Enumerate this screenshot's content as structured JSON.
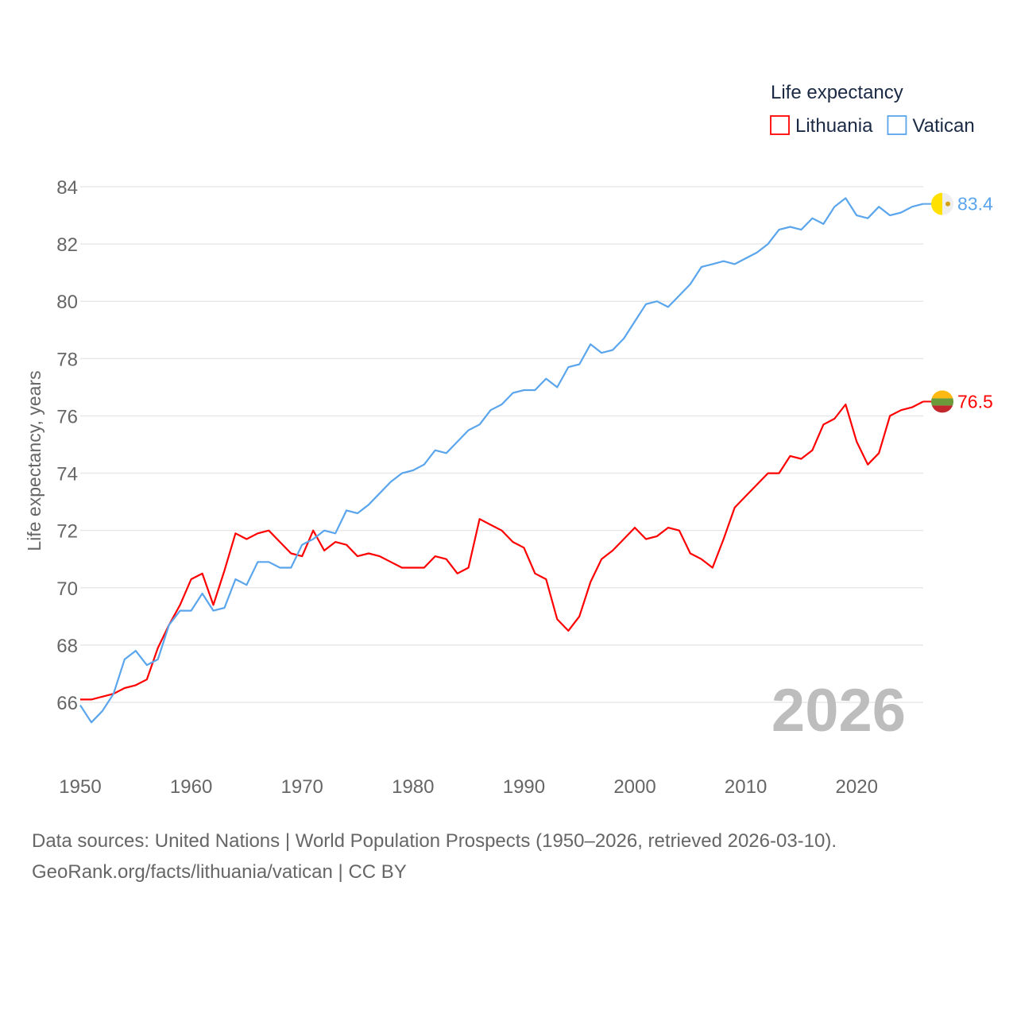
{
  "chart_data": {
    "type": "line",
    "title": "",
    "xlabel": "",
    "ylabel": "Life expectancy, years",
    "legend_title": "Life expectancy",
    "legend_position": "top-right",
    "xlim": [
      1950,
      2026
    ],
    "ylim": [
      64.5,
      84.5
    ],
    "xticks": [
      1950,
      1960,
      1970,
      1980,
      1990,
      2000,
      2010,
      2020
    ],
    "yticks": [
      66,
      68,
      70,
      72,
      74,
      76,
      78,
      80,
      82,
      84
    ],
    "grid": true,
    "watermark_year": "2026",
    "x_start": 1950,
    "series": [
      {
        "name": "Lithuania",
        "color": "#ff0000",
        "end_label": "76.5",
        "values": [
          66.1,
          66.1,
          66.2,
          66.3,
          66.5,
          66.6,
          66.8,
          67.9,
          68.7,
          69.4,
          70.3,
          70.5,
          69.4,
          70.6,
          71.9,
          71.7,
          71.9,
          72.0,
          71.6,
          71.2,
          71.1,
          72.0,
          71.3,
          71.6,
          71.5,
          71.1,
          71.2,
          71.1,
          70.9,
          70.7,
          70.7,
          70.7,
          71.1,
          71.0,
          70.5,
          70.7,
          72.4,
          72.2,
          72.0,
          71.6,
          71.4,
          70.5,
          70.3,
          68.9,
          68.5,
          69.0,
          70.2,
          71.0,
          71.3,
          71.7,
          72.1,
          71.7,
          71.8,
          72.1,
          72.0,
          71.2,
          71.0,
          70.7,
          71.7,
          72.8,
          73.2,
          73.6,
          74.0,
          74.0,
          74.6,
          74.5,
          74.8,
          75.7,
          75.9,
          76.4,
          75.1,
          74.3,
          74.7,
          76.0,
          76.2,
          76.3,
          76.5
        ]
      },
      {
        "name": "Vatican",
        "color": "#5aa5ec",
        "end_label": "83.4",
        "values": [
          65.9,
          65.3,
          65.7,
          66.3,
          67.5,
          67.8,
          67.3,
          67.5,
          68.7,
          69.2,
          69.2,
          69.8,
          69.2,
          69.3,
          70.3,
          70.1,
          70.9,
          70.9,
          70.7,
          70.7,
          71.5,
          71.7,
          72.0,
          71.9,
          72.7,
          72.6,
          72.9,
          73.3,
          73.7,
          74.0,
          74.1,
          74.3,
          74.8,
          74.7,
          75.1,
          75.5,
          75.7,
          76.2,
          76.4,
          76.8,
          76.9,
          76.9,
          77.3,
          77.0,
          77.7,
          77.8,
          78.5,
          78.2,
          78.3,
          78.7,
          79.3,
          79.9,
          80.0,
          79.8,
          80.2,
          80.6,
          81.2,
          81.3,
          81.4,
          81.3,
          81.5,
          81.7,
          82.0,
          82.5,
          82.6,
          82.5,
          82.9,
          82.7,
          83.3,
          83.6,
          83.0,
          82.9,
          83.3,
          83.0,
          83.1,
          83.3,
          83.4
        ]
      }
    ]
  },
  "footer": {
    "line1": "Data sources: United Nations | World Population Prospects (1950–2026, retrieved 2026-03-10).",
    "line2": "GeoRank.org/facts/lithuania/vatican | CC BY"
  }
}
